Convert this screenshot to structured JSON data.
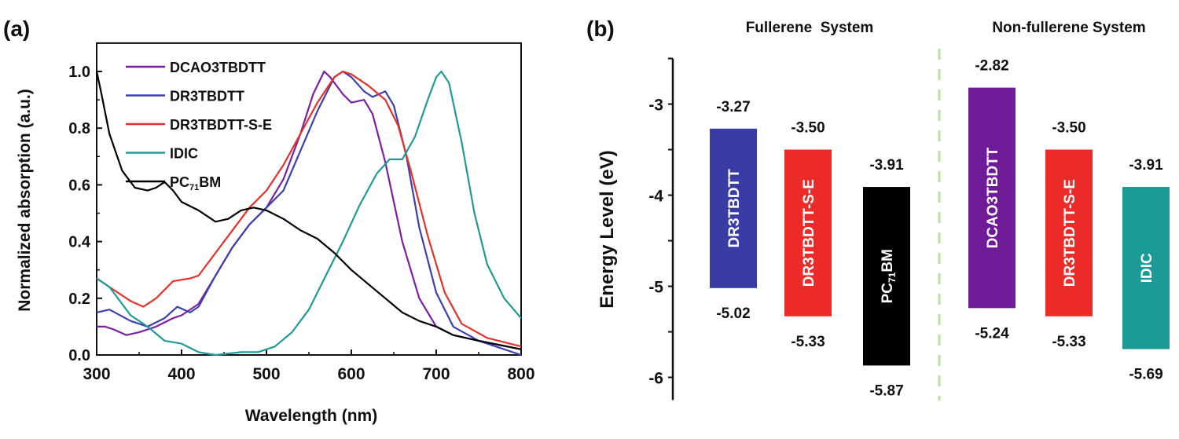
{
  "chart_data": [
    {
      "panel_label": "(a)",
      "type": "line",
      "xlabel": "Wavelength (nm)",
      "ylabel": "Normalized absorption (a.u.)",
      "xlim": [
        300,
        800
      ],
      "ylim": [
        0,
        1.1
      ],
      "xticks": [
        "300",
        "400",
        "500",
        "600",
        "700",
        "800"
      ],
      "yticks": [
        "0.0",
        "0.2",
        "0.4",
        "0.6",
        "0.8",
        "1.0"
      ],
      "legend_position": "top-left",
      "grid": false,
      "series": [
        {
          "name": "DCAO3TBDTT",
          "color": "#7d1fa0",
          "x": [
            300,
            310,
            320,
            335,
            350,
            370,
            390,
            400,
            420,
            440,
            460,
            480,
            500,
            520,
            540,
            555,
            568,
            575,
            590,
            600,
            615,
            625,
            640,
            660,
            680,
            700,
            720,
            750,
            800
          ],
          "y": [
            0.1,
            0.1,
            0.09,
            0.07,
            0.08,
            0.1,
            0.13,
            0.14,
            0.18,
            0.28,
            0.38,
            0.46,
            0.52,
            0.62,
            0.78,
            0.92,
            1.0,
            0.98,
            0.92,
            0.89,
            0.9,
            0.85,
            0.68,
            0.4,
            0.2,
            0.1,
            0.07,
            0.05,
            0.02
          ]
        },
        {
          "name": "DR3TBDTT",
          "color": "#3b3fb0",
          "x": [
            300,
            315,
            340,
            360,
            380,
            395,
            410,
            420,
            440,
            460,
            480,
            500,
            520,
            540,
            560,
            580,
            590,
            600,
            615,
            625,
            640,
            650,
            665,
            680,
            700,
            720,
            750,
            800
          ],
          "y": [
            0.15,
            0.16,
            0.12,
            0.1,
            0.13,
            0.17,
            0.15,
            0.17,
            0.28,
            0.38,
            0.46,
            0.52,
            0.58,
            0.72,
            0.86,
            0.98,
            1.0,
            0.98,
            0.93,
            0.91,
            0.93,
            0.88,
            0.7,
            0.45,
            0.22,
            0.1,
            0.05,
            0.0
          ]
        },
        {
          "name": "DR3TBDTT-S-E",
          "color": "#e8302a",
          "x": [
            300,
            320,
            340,
            355,
            370,
            390,
            410,
            420,
            440,
            460,
            480,
            500,
            520,
            540,
            560,
            580,
            590,
            600,
            620,
            640,
            655,
            670,
            690,
            710,
            730,
            760,
            800
          ],
          "y": [
            0.27,
            0.23,
            0.19,
            0.17,
            0.2,
            0.26,
            0.27,
            0.28,
            0.36,
            0.44,
            0.52,
            0.58,
            0.67,
            0.78,
            0.89,
            0.98,
            1.0,
            0.99,
            0.95,
            0.9,
            0.81,
            0.65,
            0.42,
            0.22,
            0.11,
            0.06,
            0.03
          ]
        },
        {
          "name": "IDIC",
          "color": "#1f9a98",
          "x": [
            300,
            315,
            340,
            360,
            380,
            400,
            420,
            440,
            470,
            490,
            510,
            530,
            550,
            570,
            590,
            610,
            630,
            645,
            660,
            675,
            690,
            700,
            706,
            715,
            730,
            745,
            760,
            780,
            800
          ],
          "y": [
            0.27,
            0.24,
            0.14,
            0.1,
            0.05,
            0.04,
            0.01,
            0.0,
            0.01,
            0.01,
            0.03,
            0.08,
            0.16,
            0.28,
            0.4,
            0.53,
            0.64,
            0.69,
            0.69,
            0.77,
            0.9,
            0.98,
            1.0,
            0.96,
            0.75,
            0.5,
            0.32,
            0.2,
            0.13
          ]
        },
        {
          "name": "PC71BM",
          "name_main": "PC",
          "name_sub": "71",
          "name_tail": "BM",
          "color": "#000000",
          "x": [
            300,
            305,
            315,
            330,
            345,
            360,
            370,
            380,
            390,
            400,
            420,
            440,
            455,
            470,
            485,
            500,
            520,
            540,
            560,
            580,
            600,
            620,
            640,
            660,
            680,
            700,
            720,
            750,
            800
          ],
          "y": [
            1.0,
            0.93,
            0.78,
            0.65,
            0.59,
            0.58,
            0.59,
            0.61,
            0.58,
            0.54,
            0.51,
            0.47,
            0.48,
            0.51,
            0.52,
            0.51,
            0.48,
            0.44,
            0.41,
            0.36,
            0.3,
            0.25,
            0.2,
            0.15,
            0.12,
            0.1,
            0.07,
            0.05,
            0.02
          ]
        }
      ]
    },
    {
      "panel_label": "(b)",
      "type": "bar",
      "ylabel": "Energy Level (eV)",
      "ylim": [
        -6.25,
        -2.5
      ],
      "yticks": [
        "-3",
        "-4",
        "-5",
        "-6"
      ],
      "groups": [
        {
          "title": "Fullerene  System"
        },
        {
          "title": "Non-fullerene System"
        }
      ],
      "divider_color": "#b9e0a5",
      "bars": [
        {
          "label": "DR3TBDTT",
          "group": 0,
          "lumo": -3.27,
          "homo": -5.02,
          "lumo_label": "-3.27",
          "homo_label": "-5.02",
          "color": "#3a3ca6"
        },
        {
          "label": "DR3TBDTT-S-E",
          "group": 0,
          "lumo": -3.5,
          "homo": -5.33,
          "lumo_label": "-3.50",
          "homo_label": "-5.33",
          "color": "#ec2a27"
        },
        {
          "label": "PC71BM",
          "label_main": "PC",
          "label_sub": "71",
          "label_tail": "BM",
          "group": 0,
          "lumo": -3.91,
          "homo": -5.87,
          "lumo_label": "-3.91",
          "homo_label": "-5.87",
          "color": "#000000"
        },
        {
          "label": "DCAO3TBDTT",
          "group": 1,
          "lumo": -2.82,
          "homo": -5.24,
          "lumo_label": "-2.82",
          "homo_label": "-5.24",
          "color": "#6f1a96"
        },
        {
          "label": "DR3TBDTT-S-E",
          "group": 1,
          "lumo": -3.5,
          "homo": -5.33,
          "lumo_label": "-3.50",
          "homo_label": "-5.33",
          "color": "#ec2a27"
        },
        {
          "label": "IDIC",
          "group": 1,
          "lumo": -3.91,
          "homo": -5.69,
          "lumo_label": "-3.91",
          "homo_label": "-5.69",
          "color": "#1c9a96"
        }
      ]
    }
  ]
}
